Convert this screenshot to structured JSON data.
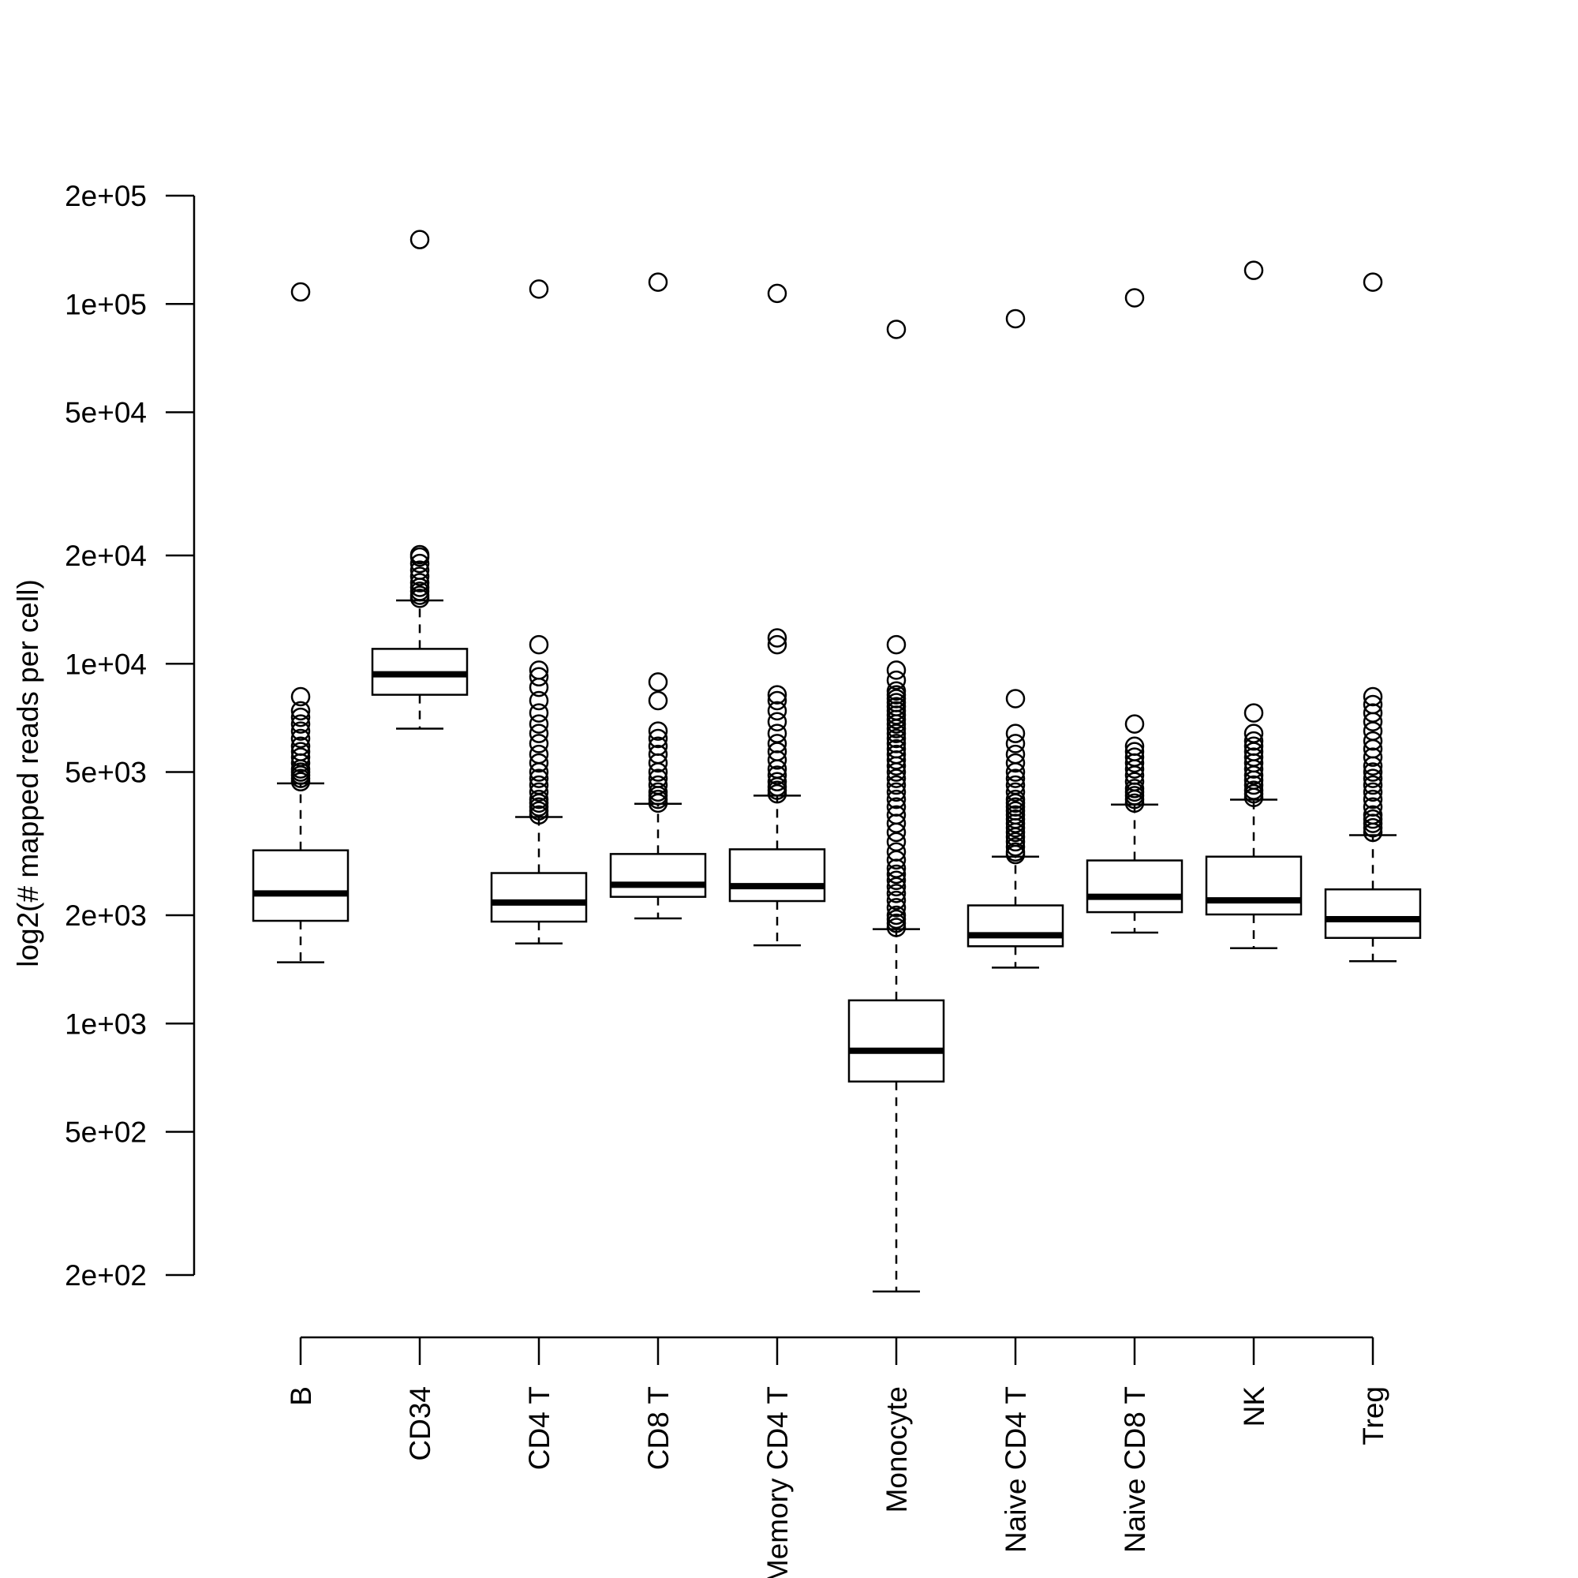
{
  "chart_data": {
    "type": "boxplot",
    "title": "",
    "xlabel": "",
    "ylabel": "log2(# mapped reads per cell)",
    "y_scale": "log",
    "ylim": [
      200,
      200000
    ],
    "y_ticks": [
      200,
      500,
      1000,
      2000,
      5000,
      10000,
      20000,
      50000,
      100000,
      200000
    ],
    "y_tick_labels": [
      "2e+02",
      "5e+02",
      "1e+03",
      "2e+03",
      "5e+03",
      "1e+04",
      "2e+04",
      "5e+04",
      "1e+05",
      "2e+05"
    ],
    "categories": [
      "B",
      "CD34",
      "CD4 T",
      "CD8 T",
      "Memory CD4 T",
      "Monocyte",
      "Naive CD4 T",
      "Naive CD8 T",
      "NK",
      "Treg"
    ],
    "boxes": [
      {
        "category": "B",
        "whisker_low": 1480,
        "q1": 1930,
        "median": 2300,
        "q3": 3030,
        "whisker_high": 4650,
        "outliers": [
          4700,
          4800,
          4900,
          5000,
          5100,
          5300,
          5500,
          5700,
          5900,
          6200,
          6500,
          6800,
          7100,
          7400,
          8100,
          108000
        ]
      },
      {
        "category": "CD34",
        "whisker_low": 6600,
        "q1": 8200,
        "median": 9350,
        "q3": 11000,
        "whisker_high": 15000,
        "outliers": [
          15200,
          15500,
          15900,
          16300,
          16800,
          17500,
          18200,
          19000,
          19800,
          20100,
          151000
        ]
      },
      {
        "category": "CD4 T",
        "whisker_low": 1670,
        "q1": 1920,
        "median": 2170,
        "q3": 2620,
        "whisker_high": 3750,
        "outliers": [
          3800,
          3900,
          4000,
          4100,
          4200,
          4400,
          4600,
          4800,
          5000,
          5300,
          5600,
          6000,
          6400,
          6800,
          7300,
          7900,
          8600,
          9200,
          9600,
          11300,
          110000
        ]
      },
      {
        "category": "CD8 T",
        "whisker_low": 1960,
        "q1": 2250,
        "median": 2430,
        "q3": 2960,
        "whisker_high": 4080,
        "outliers": [
          4100,
          4200,
          4300,
          4400,
          4600,
          4800,
          5000,
          5300,
          5600,
          5900,
          6200,
          6500,
          7900,
          8900,
          115000
        ]
      },
      {
        "category": "Memory CD4 T",
        "whisker_low": 1650,
        "q1": 2190,
        "median": 2410,
        "q3": 3050,
        "whisker_high": 4300,
        "outliers": [
          4350,
          4450,
          4550,
          4700,
          4900,
          5100,
          5400,
          5700,
          6000,
          6400,
          6900,
          7400,
          7900,
          8200,
          11300,
          11800,
          107000
        ]
      },
      {
        "category": "Monocyte",
        "whisker_low": 180,
        "q1": 690,
        "median": 840,
        "q3": 1160,
        "whisker_high": 1830,
        "outliers": [
          1850,
          1900,
          1950,
          2000,
          2100,
          2200,
          2300,
          2400,
          2500,
          2600,
          2700,
          2850,
          3000,
          3200,
          3400,
          3600,
          3800,
          4000,
          4200,
          4400,
          4600,
          4800,
          5000,
          5200,
          5400,
          5600,
          5800,
          6000,
          6200,
          6400,
          6600,
          6800,
          7000,
          7200,
          7400,
          7600,
          7800,
          8000,
          8200,
          8400,
          9000,
          9600,
          11300,
          85000
        ]
      },
      {
        "category": "Naive CD4 T",
        "whisker_low": 1430,
        "q1": 1640,
        "median": 1760,
        "q3": 2130,
        "whisker_high": 2910,
        "outliers": [
          2950,
          3000,
          3100,
          3200,
          3300,
          3400,
          3500,
          3600,
          3700,
          3800,
          3900,
          4000,
          4100,
          4200,
          4400,
          4600,
          4800,
          5000,
          5300,
          5600,
          6000,
          6400,
          8000,
          91000
        ]
      },
      {
        "category": "Naive CD8 T",
        "whisker_low": 1790,
        "q1": 2040,
        "median": 2250,
        "q3": 2840,
        "whisker_high": 4060,
        "outliers": [
          4100,
          4200,
          4300,
          4400,
          4500,
          4700,
          4900,
          5100,
          5300,
          5500,
          5700,
          5900,
          6800,
          104000
        ]
      },
      {
        "category": "NK",
        "whisker_low": 1620,
        "q1": 2010,
        "median": 2200,
        "q3": 2910,
        "whisker_high": 4190,
        "outliers": [
          4250,
          4350,
          4450,
          4600,
          4750,
          4900,
          5100,
          5300,
          5500,
          5700,
          5900,
          6100,
          6400,
          7300,
          124000
        ]
      },
      {
        "category": "Treg",
        "whisker_low": 1490,
        "q1": 1730,
        "median": 1950,
        "q3": 2360,
        "whisker_high": 3340,
        "outliers": [
          3400,
          3500,
          3600,
          3700,
          3800,
          4000,
          4200,
          4400,
          4600,
          4800,
          5000,
          5200,
          5500,
          5800,
          6100,
          6500,
          6900,
          7300,
          7700,
          8100,
          115000
        ]
      }
    ]
  }
}
